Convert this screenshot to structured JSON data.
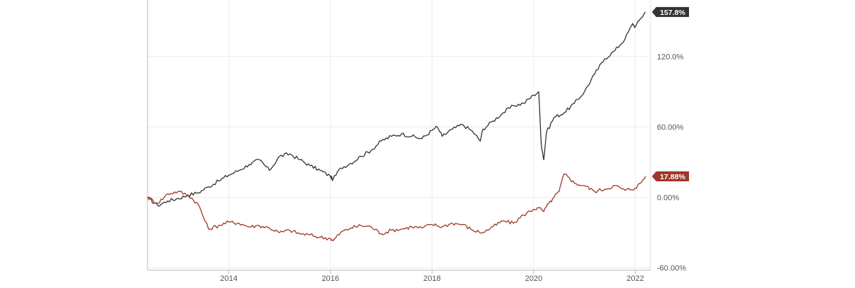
{
  "chart_data": {
    "type": "line",
    "title": "",
    "xlabel": "",
    "ylabel": "",
    "x_ticks": [
      {
        "label": "2014",
        "x": 2014.0
      },
      {
        "label": "2016",
        "x": 2016.0
      },
      {
        "label": "2018",
        "x": 2018.0
      },
      {
        "label": "2020",
        "x": 2020.0
      },
      {
        "label": "2022",
        "x": 2022.0
      }
    ],
    "y_ticks": [
      {
        "label": "120.0%",
        "y": 120
      },
      {
        "label": "60.00%",
        "y": 60
      },
      {
        "label": "0.00%",
        "y": 0
      },
      {
        "label": "-60.00%",
        "y": -60
      }
    ],
    "xlim": [
      2012.4,
      2022.3
    ],
    "ylim": [
      -62,
      168
    ],
    "grid": true,
    "series": [
      {
        "color": "#333333",
        "end_label": "157.8%",
        "x": [
          2012.4,
          2012.6,
          2012.8,
          2013.0,
          2013.2,
          2013.4,
          2013.6,
          2013.8,
          2014.0,
          2014.2,
          2014.4,
          2014.6,
          2014.8,
          2015.0,
          2015.2,
          2015.4,
          2015.6,
          2015.8,
          2016.0,
          2016.05,
          2016.2,
          2016.4,
          2016.6,
          2016.8,
          2017.0,
          2017.2,
          2017.4,
          2017.6,
          2017.8,
          2018.0,
          2018.1,
          2018.2,
          2018.4,
          2018.6,
          2018.8,
          2018.95,
          2019.0,
          2019.2,
          2019.4,
          2019.6,
          2019.8,
          2020.0,
          2020.1,
          2020.15,
          2020.2,
          2020.25,
          2020.4,
          2020.6,
          2020.8,
          2021.0,
          2021.2,
          2021.4,
          2021.6,
          2021.8,
          2021.95,
          2022.0,
          2022.1,
          2022.2
        ],
        "y": [
          0,
          -7,
          -3,
          -1,
          2,
          4,
          9,
          14,
          19,
          23,
          28,
          32,
          23,
          35,
          37,
          32,
          27,
          23,
          18,
          15,
          25,
          29,
          35,
          40,
          48,
          52,
          54,
          52,
          50,
          57,
          60,
          52,
          58,
          62,
          56,
          48,
          58,
          65,
          72,
          78,
          80,
          87,
          90,
          45,
          32,
          55,
          68,
          72,
          80,
          90,
          105,
          118,
          125,
          135,
          148,
          145,
          152,
          157.8
        ]
      },
      {
        "color": "#a0372a",
        "end_label": "17.88%",
        "x": [
          2012.4,
          2012.6,
          2012.8,
          2013.0,
          2013.2,
          2013.4,
          2013.6,
          2013.8,
          2014.0,
          2014.2,
          2014.4,
          2014.6,
          2014.8,
          2015.0,
          2015.2,
          2015.4,
          2015.6,
          2015.8,
          2016.0,
          2016.05,
          2016.2,
          2016.4,
          2016.6,
          2016.8,
          2017.0,
          2017.2,
          2017.4,
          2017.6,
          2017.8,
          2018.0,
          2018.2,
          2018.4,
          2018.6,
          2018.8,
          2019.0,
          2019.2,
          2019.4,
          2019.6,
          2019.8,
          2020.0,
          2020.1,
          2020.2,
          2020.3,
          2020.4,
          2020.5,
          2020.6,
          2020.7,
          2020.8,
          2021.0,
          2021.2,
          2021.4,
          2021.6,
          2021.8,
          2022.0,
          2022.1,
          2022.2
        ],
        "y": [
          0,
          -5,
          3,
          5,
          2,
          -6,
          -27,
          -24,
          -21,
          -22,
          -25,
          -24,
          -26,
          -30,
          -28,
          -31,
          -32,
          -34,
          -35,
          -37,
          -30,
          -26,
          -24,
          -25,
          -31,
          -28,
          -27,
          -25,
          -26,
          -23,
          -25,
          -22,
          -23,
          -28,
          -30,
          -25,
          -20,
          -22,
          -15,
          -10,
          -9,
          -12,
          -5,
          0,
          5,
          20,
          17,
          12,
          10,
          5,
          7,
          10,
          6,
          8,
          12,
          17.88
        ]
      }
    ]
  }
}
